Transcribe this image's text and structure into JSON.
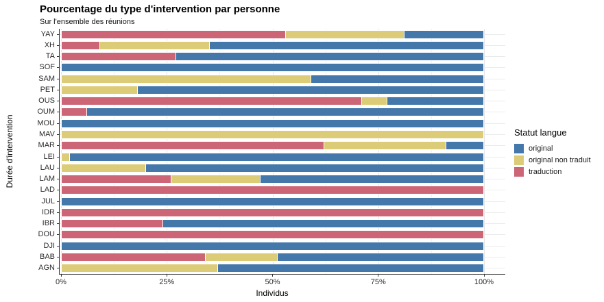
{
  "chart_data": {
    "type": "bar",
    "orientation": "horizontal",
    "stacked": true,
    "units": "percent",
    "title": "Pourcentage du type d'intervention par personne",
    "subtitle": "Sur l'ensemble des réunions",
    "xlabel": "Individus",
    "ylabel": "Durée d'intervention",
    "xlim": [
      0,
      100
    ],
    "x_major_ticks": [
      0,
      25,
      50,
      75,
      100
    ],
    "x_minor_ticks": [
      12.5,
      37.5,
      62.5,
      87.5
    ],
    "x_tick_labels": [
      "0%",
      "25%",
      "50%",
      "75%",
      "100%"
    ],
    "grid": true,
    "legend": {
      "title": "Statut langue",
      "position": "right",
      "entries": [
        {
          "label": "original",
          "color": "#4477aa"
        },
        {
          "label": "original non traduit",
          "color": "#ddcc77"
        },
        {
          "label": "traduction",
          "color": "#cc6677"
        }
      ]
    },
    "categories": [
      "YAY",
      "XH",
      "TA",
      "SOF",
      "SAM",
      "PET",
      "OUS",
      "OUM",
      "MOU",
      "MAV",
      "MAR",
      "LEI",
      "LAU",
      "LAM",
      "LAD",
      "JUL",
      "IDR",
      "IBR",
      "DOU",
      "DJI",
      "BAB",
      "AGN"
    ],
    "series": [
      {
        "name": "traduction",
        "color": "#cc6677",
        "values": [
          53,
          9,
          27,
          0,
          0,
          0,
          71,
          6,
          0,
          0,
          62,
          0,
          0,
          26,
          100,
          0,
          100,
          24,
          100,
          0,
          34,
          0
        ]
      },
      {
        "name": "original non traduit",
        "color": "#ddcc77",
        "values": [
          28,
          26,
          0,
          0,
          59,
          18,
          6,
          0,
          0,
          100,
          29,
          2,
          20,
          21,
          0,
          0,
          0,
          0,
          0,
          0,
          17,
          37
        ]
      },
      {
        "name": "original",
        "color": "#4477aa",
        "values": [
          19,
          65,
          73,
          100,
          41,
          82,
          23,
          94,
          100,
          0,
          9,
          98,
          80,
          53,
          0,
          100,
          0,
          76,
          0,
          100,
          49,
          63
        ]
      }
    ]
  }
}
